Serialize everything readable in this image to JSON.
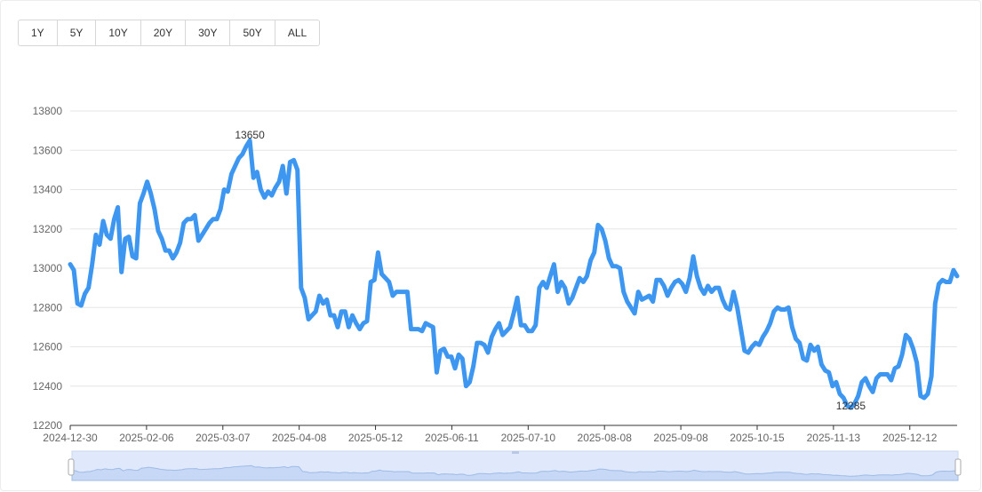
{
  "range_buttons": [
    "1Y",
    "5Y",
    "10Y",
    "20Y",
    "30Y",
    "50Y",
    "ALL"
  ],
  "colors": {
    "line": "#3d97f0",
    "grid": "#e6e6e6",
    "axis": "#666666",
    "zoom_fill": "#dfe9fb",
    "zoom_border": "#c9d6ee"
  },
  "chart_data": {
    "type": "line",
    "ylim": [
      12200,
      13800
    ],
    "y_ticks": [
      12200,
      12400,
      12600,
      12800,
      13000,
      13200,
      13400,
      13600,
      13800
    ],
    "x_ticks": [
      "2024-12-30",
      "2025-02-06",
      "2025-03-07",
      "2025-04-08",
      "2025-05-12",
      "2025-06-11",
      "2025-07-10",
      "2025-08-08",
      "2025-09-08",
      "2025-10-15",
      "2025-11-13",
      "2025-12-12"
    ],
    "max_label": "13650",
    "min_label": "12285",
    "values": [
      13020,
      12990,
      12820,
      12810,
      12870,
      12900,
      13020,
      13170,
      13120,
      13240,
      13170,
      13150,
      13250,
      13310,
      12980,
      13150,
      13160,
      13060,
      13050,
      13330,
      13380,
      13440,
      13380,
      13300,
      13190,
      13150,
      13090,
      13090,
      13050,
      13080,
      13130,
      13230,
      13250,
      13250,
      13270,
      13140,
      13170,
      13200,
      13230,
      13250,
      13250,
      13300,
      13400,
      13390,
      13480,
      13520,
      13560,
      13580,
      13620,
      13650,
      13460,
      13490,
      13400,
      13360,
      13390,
      13370,
      13410,
      13440,
      13520,
      13380,
      13540,
      13550,
      13500,
      12900,
      12850,
      12740,
      12760,
      12780,
      12860,
      12820,
      12840,
      12760,
      12760,
      12700,
      12780,
      12780,
      12700,
      12760,
      12720,
      12690,
      12720,
      12730,
      12930,
      12940,
      13080,
      12970,
      12950,
      12930,
      12860,
      12880,
      12880,
      12880,
      12880,
      12690,
      12690,
      12690,
      12680,
      12720,
      12710,
      12700,
      12470,
      12580,
      12590,
      12550,
      12550,
      12490,
      12560,
      12540,
      12400,
      12420,
      12500,
      12620,
      12620,
      12610,
      12570,
      12650,
      12690,
      12720,
      12660,
      12680,
      12700,
      12770,
      12850,
      12710,
      12710,
      12680,
      12680,
      12710,
      12900,
      12930,
      12900,
      12960,
      13020,
      12880,
      12930,
      12900,
      12820,
      12850,
      12900,
      12950,
      12930,
      12960,
      13040,
      13080,
      13220,
      13200,
      13140,
      13050,
      13010,
      13010,
      13000,
      12880,
      12830,
      12800,
      12770,
      12880,
      12840,
      12850,
      12860,
      12830,
      12940,
      12940,
      12910,
      12860,
      12900,
      12930,
      12940,
      12920,
      12880,
      12950,
      13060,
      12960,
      12900,
      12870,
      12910,
      12880,
      12900,
      12900,
      12840,
      12800,
      12790,
      12880,
      12800,
      12690,
      12580,
      12570,
      12600,
      12620,
      12610,
      12650,
      12680,
      12720,
      12780,
      12800,
      12790,
      12790,
      12800,
      12700,
      12640,
      12620,
      12540,
      12530,
      12610,
      12580,
      12600,
      12510,
      12480,
      12470,
      12400,
      12420,
      12360,
      12340,
      12300,
      12290,
      12310,
      12350,
      12420,
      12440,
      12400,
      12370,
      12440,
      12460,
      12460,
      12460,
      12430,
      12490,
      12500,
      12560,
      12660,
      12640,
      12590,
      12520,
      12350,
      12340,
      12360,
      12450,
      12820,
      12920,
      12940,
      12930,
      12930,
      12990,
      12960
    ]
  }
}
